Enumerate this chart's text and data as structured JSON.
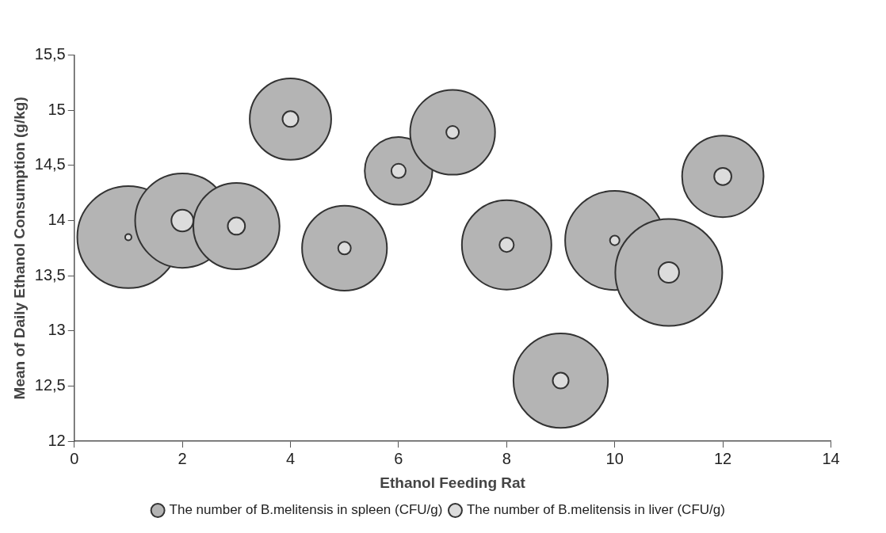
{
  "chart_data": {
    "type": "bubble",
    "xlabel": "Ethanol Feeding Rat",
    "ylabel": "Mean of Daily Ethanol Consumption (g/kg)",
    "x": [
      1,
      2,
      3,
      4,
      5,
      6,
      7,
      8,
      9,
      10,
      11,
      12
    ],
    "xlim": [
      0,
      14
    ],
    "xticks": [
      0,
      2,
      4,
      6,
      8,
      10,
      12,
      14
    ],
    "ylim": [
      12,
      15.5
    ],
    "yticks": [
      12,
      {
        "value": 12.5,
        "label": "12,5"
      },
      13,
      {
        "value": 13.5,
        "label": "13,5"
      },
      14,
      {
        "value": 14.5,
        "label": "14,5"
      },
      15,
      {
        "value": 15.5,
        "label": "15,5"
      }
    ],
    "series": [
      {
        "name": "The number of B.melitensis in spleen (CFU/g)",
        "color": "#b4b4b4",
        "values": [
          13.85,
          14.0,
          13.95,
          14.92,
          13.75,
          14.45,
          14.8,
          13.78,
          12.55,
          13.82,
          13.53,
          14.4
        ],
        "sizes": [
          0.91,
          0.78,
          0.65,
          0.58,
          0.63,
          0.4,
          0.63,
          0.7,
          0.78,
          0.86,
          1,
          0.58
        ]
      },
      {
        "name": "The number of B.melitensis in liver (CFU/g)",
        "color": "#dcdcdc",
        "values": [
          13.85,
          14.0,
          13.95,
          14.92,
          13.75,
          14.45,
          14.8,
          13.78,
          12.55,
          13.82,
          13.53,
          14.4
        ],
        "sizes": [
          0.0035,
          0.042,
          0.026,
          0.022,
          0.014,
          0.018,
          0.014,
          0.018,
          0.022,
          0.008,
          0.037,
          0.026
        ]
      }
    ],
    "grid": false,
    "legend": "bottom"
  }
}
